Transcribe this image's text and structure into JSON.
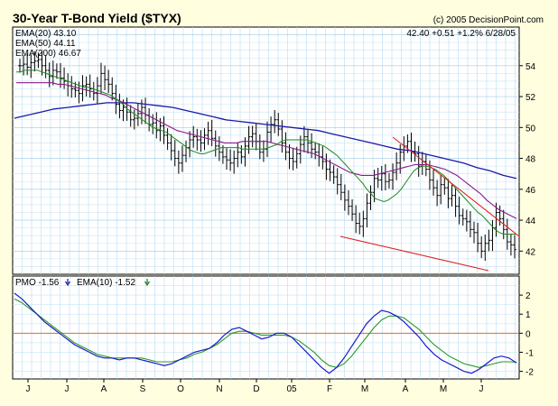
{
  "chart_data": {
    "type": "line",
    "title": "30-Year T-Bond Yield ($TYX)",
    "copyright": "(c) 2005 DecisionPoint.com",
    "quote": "42.40 +0.51 +1.2% 6/28/05",
    "legend": [
      {
        "label": "EMA(20) 43.10",
        "color": "#1a7a1a"
      },
      {
        "label": "EMA(50) 44.11",
        "color": "#7a1a7a"
      },
      {
        "label": "EMA(200) 46.67",
        "color": "#1a1aa8"
      }
    ],
    "x_ticks": [
      "J",
      "J",
      "A",
      "S",
      "O",
      "N",
      "D",
      "05",
      "F",
      "M",
      "A",
      "M",
      "J"
    ],
    "price_panel": {
      "ylim": [
        40.5,
        56.5
      ],
      "y_ticks": [
        "42",
        "44",
        "46",
        "48",
        "50",
        "52",
        "54"
      ],
      "grid": true,
      "bars": [
        54.0,
        54.1,
        53.9,
        54.2,
        54.3,
        54.4,
        54.0,
        53.7,
        53.3,
        53.7,
        53.6,
        53.2,
        53.0,
        52.7,
        52.5,
        52.4,
        52.2,
        52.7,
        52.8,
        52.5,
        52.2,
        52.7,
        53.5,
        53.1,
        52.8,
        52.2,
        51.5,
        51.1,
        51.3,
        51.0,
        50.5,
        50.6,
        50.9,
        51.3,
        50.8,
        50.2,
        50.3,
        49.8,
        50.1,
        49.5,
        49.0,
        48.5,
        48.0,
        47.7,
        48.2,
        48.7,
        49.2,
        49.4,
        49.2,
        49.0,
        49.5,
        49.8,
        49.3,
        48.8,
        48.4,
        48.1,
        47.9,
        47.7,
        48.0,
        48.4,
        48.1,
        48.8,
        49.4,
        49.6,
        49.1,
        48.4,
        48.6,
        49.7,
        50.2,
        50.5,
        49.9,
        49.0,
        48.4,
        48.0,
        47.8,
        48.3,
        48.9,
        49.4,
        49.0,
        48.6,
        48.4,
        48.1,
        47.8,
        47.3,
        47.1,
        46.8,
        46.3,
        45.8,
        45.3,
        44.9,
        44.4,
        43.8,
        43.6,
        44.1,
        45.1,
        45.8,
        46.7,
        46.6,
        47.0,
        46.5,
        46.6,
        47.1,
        47.7,
        48.4,
        48.8,
        49.1,
        48.4,
        48.3,
        47.5,
        47.8,
        47.3,
        46.6,
        46.1,
        45.6,
        46.3,
        46.1,
        45.4,
        45.6,
        44.9,
        44.3,
        44.1,
        43.9,
        43.4,
        43.2,
        42.5,
        42.0,
        42.5,
        42.7,
        43.5,
        44.5,
        44.1,
        43.4,
        42.6,
        42.4,
        42.1
      ],
      "ema20": [
        53.6,
        53.6,
        53.7,
        53.7,
        53.7,
        53.7,
        53.6,
        53.5,
        53.4,
        53.3,
        53.2,
        53.1,
        53.0,
        52.9,
        52.8,
        52.7,
        52.6,
        52.6,
        52.5,
        52.4,
        52.3,
        52.2,
        52.1,
        51.9,
        51.7,
        51.5,
        51.2,
        51.0,
        50.8,
        50.6,
        50.4,
        50.2,
        50.0,
        49.9,
        49.8,
        49.7,
        49.5,
        49.3,
        49.1,
        48.9,
        48.7,
        48.5,
        48.4,
        48.3,
        48.3,
        48.4,
        48.5,
        48.6,
        48.7,
        48.7,
        48.7,
        48.7,
        48.7,
        48.6,
        48.6,
        48.6,
        48.6,
        48.6,
        48.6,
        48.7,
        48.8,
        48.9,
        49.1,
        49.2,
        49.2,
        49.2,
        49.2,
        49.2,
        49.2,
        49.1,
        49.0,
        48.9,
        48.8,
        48.6,
        48.4,
        48.2,
        47.9,
        47.6,
        47.3,
        47.0,
        46.7,
        46.4,
        46.0,
        45.7,
        45.4,
        45.3,
        45.2,
        45.3,
        45.5,
        45.7,
        46.0,
        46.4,
        46.8,
        47.2,
        47.4,
        47.5,
        47.5,
        47.4,
        47.3,
        47.1,
        46.9,
        46.6,
        46.3,
        46.0,
        45.7,
        45.4,
        45.1,
        44.8,
        44.5,
        44.3,
        44.0,
        43.7,
        43.4,
        43.2,
        43.1,
        43.1,
        43.1,
        43.1
      ],
      "ema50": [
        52.9,
        52.9,
        52.9,
        52.9,
        52.9,
        52.9,
        52.9,
        52.8,
        52.8,
        52.7,
        52.6,
        52.5,
        52.4,
        52.3,
        52.2,
        52.1,
        51.9,
        51.8,
        51.6,
        51.4,
        51.2,
        51.0,
        50.8,
        50.6,
        50.4,
        50.2,
        50.0,
        49.8,
        49.7,
        49.6,
        49.5,
        49.4,
        49.3,
        49.2,
        49.1,
        49.0,
        49.0,
        49.0,
        49.1,
        49.1,
        49.1,
        49.1,
        49.1,
        49.0,
        48.9,
        48.8,
        48.7,
        48.6,
        48.5,
        48.4,
        48.3,
        48.1,
        47.9,
        47.7,
        47.5,
        47.3,
        47.1,
        47.0,
        46.9,
        46.9,
        46.9,
        47.0,
        47.1,
        47.2,
        47.3,
        47.4,
        47.5,
        47.6,
        47.6,
        47.6,
        47.5,
        47.4,
        47.3,
        47.1,
        46.9,
        46.6,
        46.3,
        46.0,
        45.7,
        45.3,
        45.0,
        44.7,
        44.5,
        44.3,
        44.1
      ],
      "ema200": [
        50.6,
        50.8,
        51.0,
        51.2,
        51.3,
        51.4,
        51.5,
        51.6,
        51.6,
        51.6,
        51.5,
        51.4,
        51.3,
        51.1,
        50.9,
        50.7,
        50.5,
        50.4,
        50.3,
        50.2,
        50.1,
        50.0,
        49.9,
        49.8,
        49.6,
        49.4,
        49.2,
        49.0,
        48.8,
        48.6,
        48.5,
        48.3,
        48.1,
        47.9,
        47.7,
        47.4,
        47.2,
        46.9,
        46.7
      ]
    },
    "pmo_panel": {
      "legend": [
        {
          "label": "PMO -1.56",
          "color": "#1a1aa8"
        },
        {
          "label": "EMA(10) -1.52",
          "color": "#1a7a1a"
        }
      ],
      "ylim": [
        -2.4,
        3.0
      ],
      "y_ticks": [
        "2",
        "1",
        "0",
        "-1",
        "-2"
      ],
      "pmo": [
        2.1,
        1.8,
        1.4,
        1.0,
        0.6,
        0.3,
        0.0,
        -0.3,
        -0.6,
        -0.8,
        -1.0,
        -1.2,
        -1.3,
        -1.3,
        -1.4,
        -1.3,
        -1.3,
        -1.4,
        -1.5,
        -1.6,
        -1.7,
        -1.6,
        -1.4,
        -1.2,
        -1.0,
        -0.9,
        -0.8,
        -0.5,
        -0.1,
        0.2,
        0.3,
        0.1,
        -0.1,
        -0.3,
        -0.2,
        0.0,
        0.0,
        -0.2,
        -0.6,
        -1.0,
        -1.4,
        -1.8,
        -2.1,
        -1.8,
        -1.3,
        -0.7,
        -0.1,
        0.5,
        0.9,
        1.2,
        1.1,
        0.9,
        0.6,
        0.2,
        -0.2,
        -0.7,
        -1.1,
        -1.4,
        -1.6,
        -1.8,
        -2.0,
        -2.1,
        -1.9,
        -1.6,
        -1.3,
        -1.2,
        -1.3,
        -1.56
      ],
      "ema10": [
        1.8,
        1.6,
        1.3,
        1.0,
        0.7,
        0.4,
        0.1,
        -0.2,
        -0.5,
        -0.7,
        -0.9,
        -1.1,
        -1.2,
        -1.3,
        -1.3,
        -1.3,
        -1.3,
        -1.3,
        -1.4,
        -1.5,
        -1.5,
        -1.5,
        -1.4,
        -1.3,
        -1.1,
        -1.0,
        -0.8,
        -0.6,
        -0.3,
        0.0,
        0.1,
        0.1,
        0.0,
        -0.1,
        -0.1,
        -0.1,
        -0.1,
        -0.2,
        -0.4,
        -0.7,
        -1.0,
        -1.4,
        -1.7,
        -1.8,
        -1.6,
        -1.2,
        -0.7,
        -0.2,
        0.3,
        0.7,
        0.9,
        0.9,
        0.8,
        0.5,
        0.2,
        -0.2,
        -0.6,
        -0.9,
        -1.2,
        -1.4,
        -1.6,
        -1.7,
        -1.8,
        -1.7,
        -1.6,
        -1.5,
        -1.5,
        -1.52
      ]
    }
  }
}
